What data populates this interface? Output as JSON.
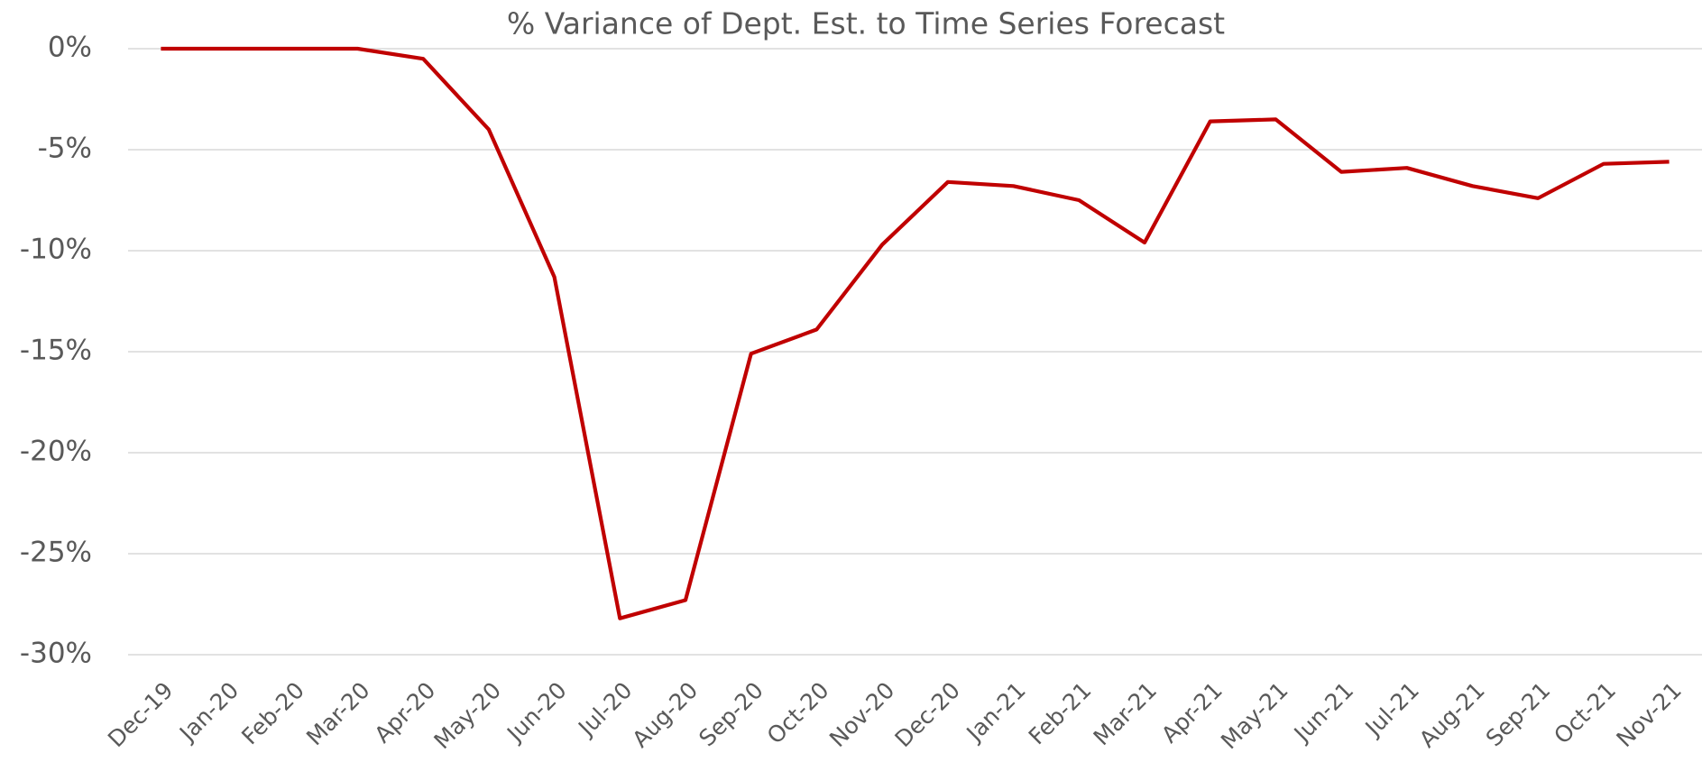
{
  "chart_data": {
    "type": "line",
    "title": "% Variance of Dept. Est. to Time Series Forecast",
    "categories": [
      "Dec-19",
      "Jan-20",
      "Feb-20",
      "Mar-20",
      "Apr-20",
      "May-20",
      "Jun-20",
      "Jul-20",
      "Aug-20",
      "Sep-20",
      "Oct-20",
      "Nov-20",
      "Dec-20",
      "Jan-21",
      "Feb-21",
      "Mar-21",
      "Apr-21",
      "May-21",
      "Jun-21",
      "Jul-21",
      "Aug-21",
      "Sep-21",
      "Oct-21",
      "Nov-21"
    ],
    "values": [
      0,
      0,
      0,
      0,
      -0.5,
      -4.0,
      -11.3,
      -28.2,
      -27.3,
      -15.1,
      -13.9,
      -9.7,
      -6.6,
      -6.8,
      -7.5,
      -9.6,
      -3.6,
      -3.5,
      -6.1,
      -5.9,
      -6.8,
      -7.4,
      -5.7,
      -5.6
    ],
    "color": "#c00000",
    "ylim": [
      -30,
      0
    ],
    "yticks": [
      {
        "value": 0,
        "label": "0%"
      },
      {
        "value": -5,
        "label": "-5%"
      },
      {
        "value": -10,
        "label": "-10%"
      },
      {
        "value": -15,
        "label": "-15%"
      },
      {
        "value": -20,
        "label": "-20%"
      },
      {
        "value": -25,
        "label": "-25%"
      },
      {
        "value": -30,
        "label": "-30%"
      }
    ],
    "grid": true
  }
}
